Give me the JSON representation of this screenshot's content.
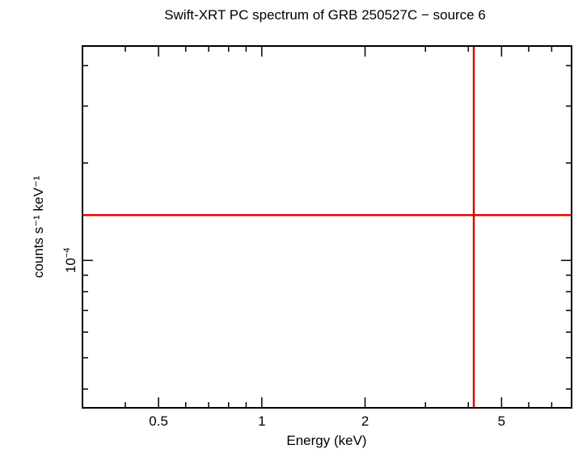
{
  "chart_data": {
    "type": "scatter",
    "title": "Swift-XRT PC spectrum of GRB 250527C − source 6",
    "xlabel": "Energy (keV)",
    "ylabel": "counts s⁻¹ keV⁻¹",
    "xscale": "log",
    "yscale": "log",
    "xlim": [
      0.3,
      8.0
    ],
    "ylim": [
      3.5e-05,
      0.00046
    ],
    "xticks": [
      {
        "value": 0.5,
        "label": "0.5"
      },
      {
        "value": 1,
        "label": "1"
      },
      {
        "value": 2,
        "label": "2"
      },
      {
        "value": 5,
        "label": "5"
      }
    ],
    "yticks": [
      {
        "value": 0.0001,
        "label_base": "10",
        "label_exp": "−4"
      }
    ],
    "grid": false,
    "series": [
      {
        "color": "#e00000",
        "points": [
          {
            "x": 4.15,
            "y": 0.000138,
            "xerr": [
              0.3,
              8.0
            ],
            "yerr": [
              3.5e-05,
              0.00046
            ]
          }
        ]
      }
    ]
  }
}
